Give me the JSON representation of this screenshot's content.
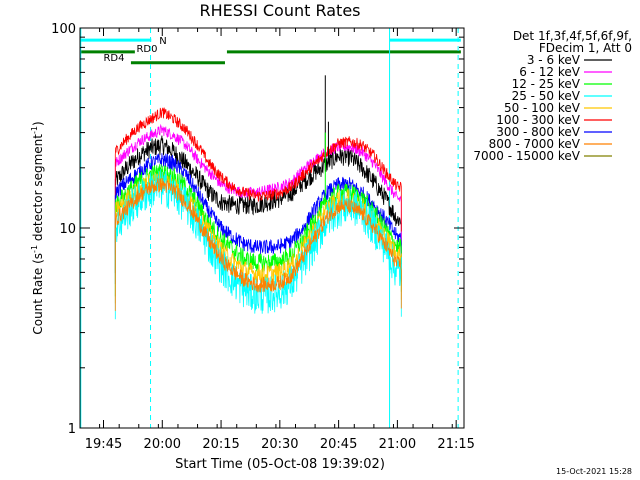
{
  "chart_data": {
    "type": "line",
    "title": "RHESSI Count Rates",
    "xlabel": "Start Time (05-Oct-08 19:39:02)",
    "ylabel": "Count Rate (s",
    "ylabel_sup": "-1",
    "ylabel_rest": " detector segment",
    "ylabel_sup2": "-1",
    "ylabel_end": ")",
    "y_scale": "log",
    "ylim": [
      1,
      100
    ],
    "xlim_minutes_after_1939": [
      0,
      98
    ],
    "x_ticks": [
      {
        "label": "19:45",
        "minutes": 6
      },
      {
        "label": "20:00",
        "minutes": 21
      },
      {
        "label": "20:15",
        "minutes": 36
      },
      {
        "label": "20:30",
        "minutes": 51
      },
      {
        "label": "20:45",
        "minutes": 66
      },
      {
        "label": "21:00",
        "minutes": 81
      },
      {
        "label": "21:15",
        "minutes": 96
      }
    ],
    "y_ticks": [
      {
        "label": "1",
        "value": 1
      },
      {
        "label": "10",
        "value": 10
      },
      {
        "label": "100",
        "value": 100
      }
    ],
    "legend": {
      "placement": "right",
      "header": [
        "Det 1f,3f,4f,5f,6f,9f,",
        "FDecim 1, Att 0"
      ],
      "entries": [
        {
          "label": "3 - 6 keV",
          "color": "#000000"
        },
        {
          "label": "6 - 12 keV",
          "color": "#ff00ff"
        },
        {
          "label": "12 - 25 keV",
          "color": "#00ff00"
        },
        {
          "label": "25 - 50 keV",
          "color": "#00ffff"
        },
        {
          "label": "50 - 100 keV",
          "color": "#ffc800"
        },
        {
          "label": "100 - 300 keV",
          "color": "#ff0000"
        },
        {
          "label": "300 - 800 keV",
          "color": "#0000ff"
        },
        {
          "label": "800 - 7000 keV",
          "color": "#ff8000"
        },
        {
          "label": "7000 - 15000 keV",
          "color": "#808000"
        }
      ]
    },
    "x_knots": [
      9,
      12,
      15,
      18,
      21,
      24,
      27,
      30,
      33,
      36,
      39,
      42,
      45,
      48,
      51,
      54,
      57,
      60,
      63,
      66,
      69,
      72,
      75,
      78,
      81,
      82
    ],
    "series": [
      {
        "label_ref": 0,
        "color": "#000000",
        "noise": 0.05,
        "values": [
          17,
          20,
          23,
          25,
          26,
          24,
          21,
          18,
          15,
          13.5,
          13,
          13,
          13,
          13.5,
          14,
          15,
          17,
          19,
          21,
          23,
          22.5,
          20,
          17,
          14,
          11,
          11
        ]
      },
      {
        "label_ref": 1,
        "color": "#ff00ff",
        "noise": 0.03,
        "values": [
          21,
          24,
          27,
          29,
          31,
          29,
          26,
          22,
          19,
          16.5,
          15.5,
          15,
          15,
          15.5,
          16,
          17,
          19.5,
          22,
          24,
          25.5,
          25.5,
          24,
          21,
          17,
          14,
          14
        ]
      },
      {
        "label_ref": 5,
        "color": "#ff0000",
        "noise": 0.03,
        "values": [
          24,
          28,
          32,
          35,
          38,
          35,
          31,
          26,
          21,
          18,
          16,
          15,
          14.5,
          14.5,
          15,
          16,
          18.5,
          21,
          24,
          26.5,
          27,
          26,
          23,
          19,
          16,
          16
        ]
      },
      {
        "label_ref": 6,
        "color": "#0000ff",
        "noise": 0.04,
        "values": [
          15,
          17,
          19,
          21,
          22,
          21,
          18.5,
          15,
          12,
          10,
          9,
          8.3,
          8,
          8,
          8.1,
          8.6,
          10,
          12.5,
          15,
          16.5,
          16.5,
          15,
          13,
          11,
          9,
          9
        ]
      },
      {
        "label_ref": 2,
        "color": "#00ff00",
        "noise": 0.05,
        "values": [
          13,
          15,
          17,
          18.5,
          19,
          18,
          16,
          13,
          10.5,
          8.8,
          7.8,
          7,
          6.7,
          6.7,
          6.8,
          7.3,
          8.8,
          11,
          13.5,
          15,
          15,
          14,
          12,
          9.8,
          8,
          8
        ]
      },
      {
        "label_ref": 4,
        "color": "#ffc800",
        "noise": 0.05,
        "values": [
          12,
          14,
          15.5,
          17,
          17.5,
          16.5,
          14.5,
          12,
          9.5,
          7.8,
          6.8,
          6.2,
          5.9,
          5.9,
          6,
          6.5,
          8,
          10,
          12.5,
          14,
          14,
          13,
          11,
          9,
          7.3,
          7.3
        ]
      },
      {
        "label_ref": 3,
        "color": "#00ffff",
        "noise": 0.1,
        "values": [
          10,
          12,
          14,
          15.5,
          16,
          15,
          13,
          10.5,
          8.2,
          6.5,
          5.5,
          4.9,
          4.6,
          4.6,
          4.8,
          5.3,
          6.6,
          8.5,
          11,
          12.5,
          13,
          12,
          10,
          8,
          6,
          6
        ]
      },
      {
        "label_ref": 7,
        "color": "#ff8000",
        "noise": 0.04,
        "values": [
          11,
          12.5,
          14.5,
          16,
          16.5,
          15.5,
          13.5,
          11,
          8.6,
          7,
          6.1,
          5.5,
          5.2,
          5.2,
          5.3,
          5.8,
          7.2,
          9,
          11.3,
          12.8,
          12.8,
          11.8,
          10,
          8.2,
          6.6,
          6.6
        ]
      }
    ],
    "spikes": [
      {
        "series_ref": 0,
        "minutes": 62.6,
        "value": 58
      },
      {
        "series_ref": 0,
        "minutes": 63.4,
        "value": 34
      },
      {
        "series_ref": 2,
        "minutes": 62.6,
        "value": 30
      }
    ],
    "state_bars": [
      {
        "label": "N",
        "color": "#00ffff",
        "y_value": 87,
        "segments": [
          [
            0,
            18.2
          ],
          [
            79,
            97.2
          ]
        ]
      },
      {
        "label": "RD0",
        "color": "#008000",
        "y_value": 76,
        "segments": [
          [
            0,
            14
          ],
          [
            37.5,
            97.2
          ]
        ]
      },
      {
        "label": "RD4",
        "color": "#008000",
        "y_value": 67,
        "segments": [
          [
            13,
            37
          ]
        ]
      }
    ],
    "vertical_markers": [
      {
        "minutes": 18,
        "color": "#00ffff",
        "style": "dashed"
      },
      {
        "minutes": 79,
        "color": "#00ffff",
        "style": "solid"
      },
      {
        "minutes": 96.5,
        "color": "#00ffff",
        "style": "dashed"
      }
    ]
  },
  "footer": {
    "timestamp": "15-Oct-2021 15:28"
  }
}
